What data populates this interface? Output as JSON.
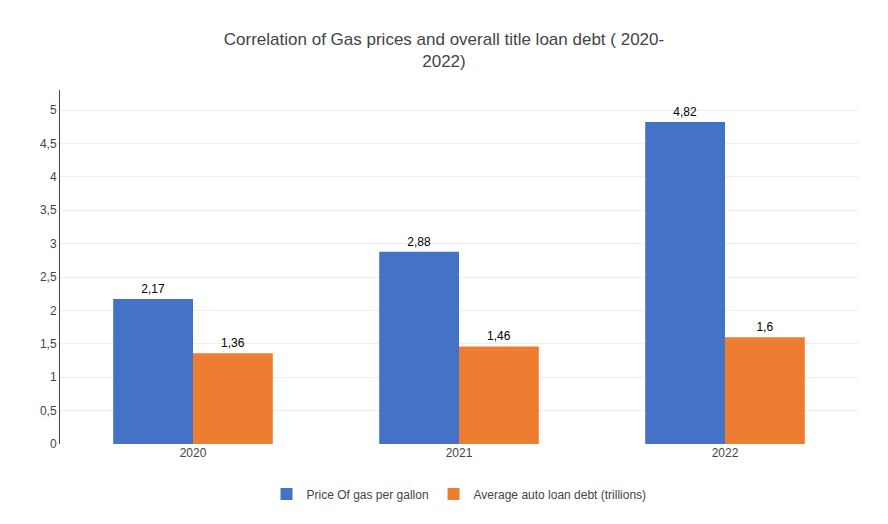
{
  "chart_data": {
    "type": "bar",
    "title": "Correlation of Gas prices and overall title loan debt ( 2020-\n2022)",
    "categories": [
      "2020",
      "2021",
      "2022"
    ],
    "series": [
      {
        "name": "Price Of gas per gallon",
        "color": "#4472C4",
        "values": [
          2.17,
          2.88,
          4.82
        ],
        "value_labels": [
          "2,17",
          "2,88",
          "4,82"
        ]
      },
      {
        "name": "Average auto loan debt (trillions)",
        "color": "#ED7D31",
        "values": [
          1.36,
          1.46,
          1.6
        ],
        "value_labels": [
          "1,36",
          "1,46",
          "1,6"
        ]
      }
    ],
    "ylim": [
      0,
      5.3
    ],
    "yticks": [
      0,
      {
        "value": 0.5,
        "label": "0,5"
      },
      1,
      {
        "value": 1.5,
        "label": "1,5"
      },
      2,
      {
        "value": 2.5,
        "label": "2,5"
      },
      3,
      {
        "value": 3.5,
        "label": "3,5"
      },
      4,
      {
        "value": 4.5,
        "label": "4,5"
      },
      5
    ],
    "grid": true,
    "data_labels": true,
    "legend": "bottom"
  }
}
